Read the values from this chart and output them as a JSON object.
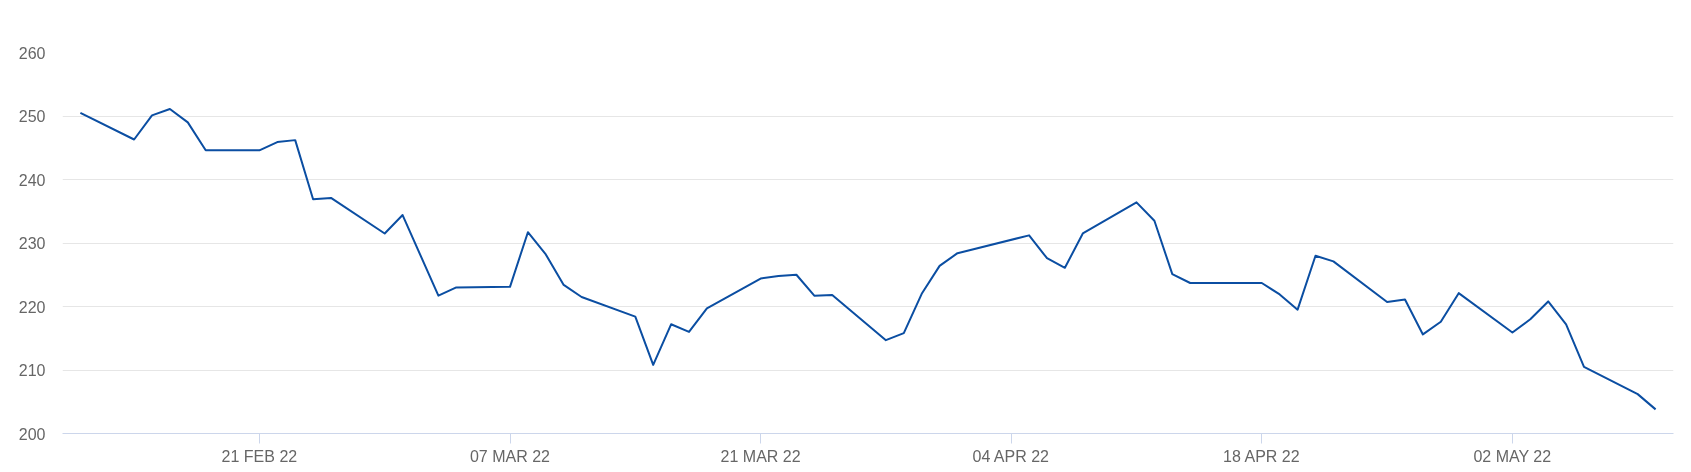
{
  "chart_data": {
    "type": "line",
    "x": [
      "2022-02-11",
      "2022-02-14",
      "2022-02-15",
      "2022-02-16",
      "2022-02-17",
      "2022-02-18",
      "2022-02-21",
      "2022-02-22",
      "2022-02-23",
      "2022-02-24",
      "2022-02-25",
      "2022-02-28",
      "2022-03-01",
      "2022-03-03",
      "2022-03-04",
      "2022-03-07",
      "2022-03-08",
      "2022-03-09",
      "2022-03-10",
      "2022-03-11",
      "2022-03-14",
      "2022-03-15",
      "2022-03-16",
      "2022-03-17",
      "2022-03-18",
      "2022-03-21",
      "2022-03-22",
      "2022-03-23",
      "2022-03-24",
      "2022-03-25",
      "2022-03-28",
      "2022-03-29",
      "2022-03-30",
      "2022-03-31",
      "2022-04-01",
      "2022-04-05",
      "2022-04-06",
      "2022-04-07",
      "2022-04-08",
      "2022-04-11",
      "2022-04-12",
      "2022-04-13",
      "2022-04-14",
      "2022-04-18",
      "2022-04-19",
      "2022-04-20",
      "2022-04-21",
      "2022-04-22",
      "2022-04-25",
      "2022-04-26",
      "2022-04-27",
      "2022-04-28",
      "2022-04-29",
      "2022-05-02",
      "2022-05-03",
      "2022-05-04",
      "2022-05-05",
      "2022-05-06",
      "2022-05-09",
      "2022-05-10"
    ],
    "series": [
      {
        "color": "#0b4ea2",
        "values": [
          250.5,
          246.3,
          250.1,
          251.1,
          249.0,
          244.6,
          244.6,
          245.9,
          246.2,
          236.9,
          237.1,
          231.5,
          234.4,
          221.7,
          223.0,
          223.1,
          231.7,
          228.2,
          223.4,
          221.5,
          218.4,
          210.8,
          217.2,
          216.0,
          219.7,
          224.4,
          224.8,
          225.0,
          221.7,
          221.8,
          214.7,
          215.8,
          222.0,
          226.4,
          228.4,
          231.2,
          227.6,
          226.1,
          231.5,
          236.4,
          233.5,
          225.1,
          223.7,
          223.7,
          221.9,
          219.5,
          228.0,
          227.1,
          220.7,
          221.1,
          215.6,
          217.6,
          222.1,
          215.9,
          218.0,
          220.8,
          217.2,
          210.5,
          206.2,
          203.8
        ]
      }
    ],
    "xlim": [
      "2022-02-10",
      "2022-05-11"
    ],
    "ylim": [
      200,
      260
    ],
    "xticks": [
      {
        "value": "2022-02-21",
        "label": "21 FEB 22"
      },
      {
        "value": "2022-03-07",
        "label": "07 MAR 22"
      },
      {
        "value": "2022-03-21",
        "label": "21 MAR 22"
      },
      {
        "value": "2022-04-04",
        "label": "04 APR 22"
      },
      {
        "value": "2022-04-18",
        "label": "18 APR 22"
      },
      {
        "value": "2022-05-02",
        "label": "02 MAY 22"
      }
    ],
    "yticks": [
      200,
      210,
      220,
      230,
      240,
      250,
      260
    ],
    "grid": "y"
  }
}
